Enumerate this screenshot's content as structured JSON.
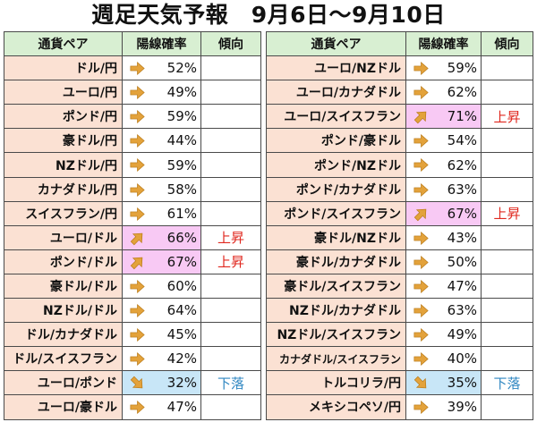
{
  "title": "週足天気予報　9月6日～9月10日",
  "headers": {
    "pair": "通貨ペア",
    "rate": "陽線確率",
    "trend": "傾向"
  },
  "colors": {
    "header_bg": "#d8efd2",
    "pair_bg": "#fbe1d3",
    "up_bg": "#f8c9f4",
    "down_bg": "#c8e6f7",
    "up_text": "#e0281f",
    "down_text": "#2e86c1",
    "arrow": "#e3a23b"
  },
  "left_rows": [
    {
      "pair": "ドル/円",
      "rate": "52%",
      "arrow": "right",
      "trend": ""
    },
    {
      "pair": "ユーロ/円",
      "rate": "49%",
      "arrow": "right",
      "trend": ""
    },
    {
      "pair": "ポンド/円",
      "rate": "59%",
      "arrow": "right",
      "trend": ""
    },
    {
      "pair": "豪ドル/円",
      "rate": "44%",
      "arrow": "right",
      "trend": ""
    },
    {
      "pair": "NZドル/円",
      "rate": "59%",
      "arrow": "right",
      "trend": ""
    },
    {
      "pair": "カナダドル/円",
      "rate": "58%",
      "arrow": "right",
      "trend": ""
    },
    {
      "pair": "スイスフラン/円",
      "rate": "61%",
      "arrow": "right",
      "trend": ""
    },
    {
      "pair": "ユーロ/ドル",
      "rate": "66%",
      "arrow": "up",
      "trend": "上昇"
    },
    {
      "pair": "ポンド/ドル",
      "rate": "67%",
      "arrow": "up",
      "trend": "上昇"
    },
    {
      "pair": "豪ドル/ドル",
      "rate": "60%",
      "arrow": "right",
      "trend": ""
    },
    {
      "pair": "NZドル/ドル",
      "rate": "64%",
      "arrow": "right",
      "trend": ""
    },
    {
      "pair": "ドル/カナダドル",
      "rate": "45%",
      "arrow": "right",
      "trend": ""
    },
    {
      "pair": "ドル/スイスフラン",
      "rate": "42%",
      "arrow": "right",
      "trend": ""
    },
    {
      "pair": "ユーロ/ポンド",
      "rate": "32%",
      "arrow": "down",
      "trend": "下落"
    },
    {
      "pair": "ユーロ/豪ドル",
      "rate": "47%",
      "arrow": "right",
      "trend": ""
    }
  ],
  "right_rows": [
    {
      "pair": "ユーロ/NZドル",
      "rate": "59%",
      "arrow": "right",
      "trend": ""
    },
    {
      "pair": "ユーロ/カナダドル",
      "rate": "62%",
      "arrow": "right",
      "trend": ""
    },
    {
      "pair": "ユーロ/スイスフラン",
      "rate": "71%",
      "arrow": "up",
      "trend": "上昇"
    },
    {
      "pair": "ポンド/豪ドル",
      "rate": "54%",
      "arrow": "right",
      "trend": ""
    },
    {
      "pair": "ポンド/NZドル",
      "rate": "62%",
      "arrow": "right",
      "trend": ""
    },
    {
      "pair": "ポンド/カナダドル",
      "rate": "63%",
      "arrow": "right",
      "trend": ""
    },
    {
      "pair": "ポンド/スイスフラン",
      "rate": "67%",
      "arrow": "up",
      "trend": "上昇"
    },
    {
      "pair": "豪ドル/NZドル",
      "rate": "43%",
      "arrow": "right",
      "trend": ""
    },
    {
      "pair": "豪ドル/カナダドル",
      "rate": "50%",
      "arrow": "right",
      "trend": ""
    },
    {
      "pair": "豪ドル/スイスフラン",
      "rate": "47%",
      "arrow": "right",
      "trend": ""
    },
    {
      "pair": "NZドル/カナダドル",
      "rate": "63%",
      "arrow": "right",
      "trend": ""
    },
    {
      "pair": "NZドル/スイスフラン",
      "rate": "49%",
      "arrow": "right",
      "trend": ""
    },
    {
      "pair": "カナダドル/スイスフラン",
      "rate": "40%",
      "arrow": "right",
      "trend": "",
      "small": true
    },
    {
      "pair": "トルコリラ/円",
      "rate": "35%",
      "arrow": "down",
      "trend": "下落"
    },
    {
      "pair": "メキシコペソ/円",
      "rate": "39%",
      "arrow": "right",
      "trend": ""
    }
  ]
}
